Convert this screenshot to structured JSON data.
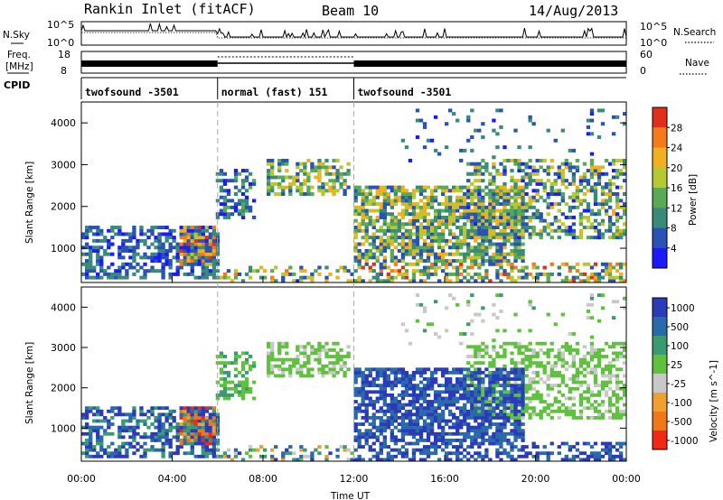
{
  "header": {
    "station": "Rankin Inlet (fitACF)",
    "beam": "Beam 10",
    "date": "14/Aug/2013"
  },
  "noise_panel": {
    "left_label": "N.Sky",
    "right_label": "N.Search",
    "left_ticks": [
      "10^5",
      "10^0"
    ],
    "right_ticks": [
      "10^5",
      "10^0"
    ]
  },
  "freq_panel": {
    "left_label_line1": "Freq.",
    "left_label_line2": "[MHz]",
    "right_label": "Nave",
    "left_ticks": [
      "18",
      "8"
    ],
    "right_ticks": [
      "60",
      "0"
    ]
  },
  "cpid": {
    "label": "CPID",
    "modes": [
      {
        "name": "twofsound -3501",
        "start_hour": 0,
        "end_hour": 6
      },
      {
        "name": "normal (fast) 151",
        "start_hour": 6,
        "end_hour": 12
      },
      {
        "name": "twofsound -3501",
        "start_hour": 12,
        "end_hour": 24
      }
    ]
  },
  "power_panel": {
    "ylabel": "Slant Range [km]",
    "yticks": [
      "1000",
      "2000",
      "3000",
      "4000"
    ],
    "colorbar_label": "Power [dB]",
    "colorbar_ticks": [
      "4",
      "8",
      "12",
      "16",
      "20",
      "24",
      "28"
    ],
    "colors": [
      "#1a1aff",
      "#2a52b5",
      "#3a8a78",
      "#5aaa55",
      "#b8c832",
      "#f0b020",
      "#f57a1a",
      "#e0301a"
    ]
  },
  "velocity_panel": {
    "ylabel": "Slant Range [km]",
    "yticks": [
      "1000",
      "2000",
      "3000",
      "4000"
    ],
    "colorbar_label": "Velocity [m s^-1]",
    "colorbar_ticks": [
      "1000",
      "500",
      "100",
      "25",
      "-25",
      "-100",
      "-500",
      "-1000"
    ],
    "colors": [
      "#2a3ab8",
      "#2a6aa8",
      "#3a9a70",
      "#60c040",
      "#c8c8c8",
      "#f0a030",
      "#f07818",
      "#f02818"
    ]
  },
  "time_axis": {
    "label": "Time UT",
    "ticks": [
      "00:00",
      "04:00",
      "08:00",
      "12:00",
      "16:00",
      "20:00",
      "00:00"
    ]
  },
  "chart_data": {
    "type": "heatmap",
    "xlabel": "Time UT",
    "ylabel": "Slant Range [km]",
    "xlim_hours": [
      0,
      24
    ],
    "ylim_km": [
      180,
      4500
    ],
    "power_colorbar_label": "Power [dB]",
    "velocity_colorbar_label": "Velocity [m s^-1]",
    "scatter_regions": [
      {
        "t0": 0.0,
        "t1": 6.0,
        "r0": 300,
        "r1": 1560,
        "density": 0.55,
        "pw": [
          0.5,
          3.0
        ],
        "v": [
          -0.3,
          2.8
        ]
      },
      {
        "t0": 4.3,
        "t1": 5.9,
        "r0": 550,
        "r1": 1500,
        "density": 0.85,
        "pw": [
          4.5,
          7.5
        ],
        "v": [
          5.6,
          7.5
        ]
      },
      {
        "t0": 6.0,
        "t1": 7.6,
        "r0": 1700,
        "r1": 2900,
        "density": 0.5,
        "pw": [
          0.5,
          3.5
        ],
        "v": [
          2.5,
          4.0
        ]
      },
      {
        "t0": 8.2,
        "t1": 11.9,
        "r0": 2300,
        "r1": 3150,
        "density": 0.55,
        "pw": [
          1.5,
          5.5
        ],
        "v": [
          3.0,
          4.2
        ]
      },
      {
        "t0": 6.0,
        "t1": 12.0,
        "r0": 180,
        "r1": 600,
        "density": 0.35,
        "pw": [
          0.5,
          6.5
        ],
        "v": [
          0.5,
          5.5
        ]
      },
      {
        "t0": 12.0,
        "t1": 19.5,
        "r0": 650,
        "r1": 2500,
        "density": 0.72,
        "pw": [
          1.0,
          6.0
        ],
        "v": [
          0.0,
          1.9
        ]
      },
      {
        "t0": 12.0,
        "t1": 24.0,
        "r0": 180,
        "r1": 650,
        "density": 0.45,
        "pw": [
          1.0,
          7.5
        ],
        "v": [
          0.0,
          1.9
        ]
      },
      {
        "t0": 17.0,
        "t1": 24.0,
        "r0": 1200,
        "r1": 3100,
        "density": 0.5,
        "pw": [
          0.5,
          5.5
        ],
        "v": [
          3.2,
          4.2
        ]
      },
      {
        "t0": 14.0,
        "t1": 24.0,
        "r0": 3100,
        "r1": 4300,
        "density": 0.05,
        "pw": [
          0.5,
          3.0
        ],
        "v": [
          2.5,
          5.0
        ]
      }
    ]
  }
}
